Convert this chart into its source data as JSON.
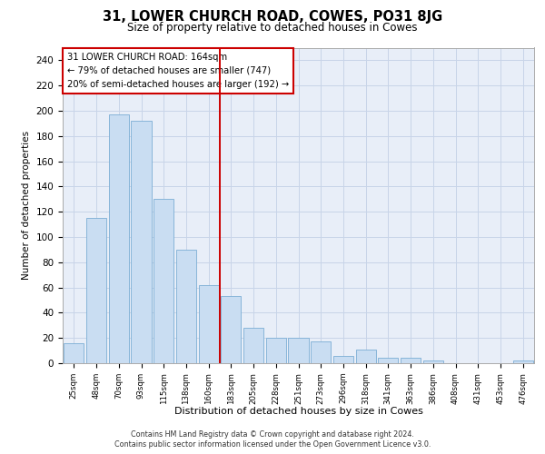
{
  "title": "31, LOWER CHURCH ROAD, COWES, PO31 8JG",
  "subtitle": "Size of property relative to detached houses in Cowes",
  "xlabel": "Distribution of detached houses by size in Cowes",
  "ylabel": "Number of detached properties",
  "categories": [
    "25sqm",
    "48sqm",
    "70sqm",
    "93sqm",
    "115sqm",
    "138sqm",
    "160sqm",
    "183sqm",
    "205sqm",
    "228sqm",
    "251sqm",
    "273sqm",
    "296sqm",
    "318sqm",
    "341sqm",
    "363sqm",
    "386sqm",
    "408sqm",
    "431sqm",
    "453sqm",
    "476sqm"
  ],
  "values": [
    16,
    115,
    197,
    192,
    130,
    90,
    62,
    53,
    28,
    20,
    20,
    17,
    6,
    11,
    4,
    4,
    2,
    0,
    0,
    0,
    2
  ],
  "bar_color": "#c9ddf2",
  "bar_edge_color": "#7badd4",
  "grid_color": "#c8d4e8",
  "background_color": "#e8eef8",
  "annotation_text": "31 LOWER CHURCH ROAD: 164sqm\n← 79% of detached houses are smaller (747)\n20% of semi-detached houses are larger (192) →",
  "vline_x_index": 6.5,
  "ylim": [
    0,
    250
  ],
  "yticks": [
    0,
    20,
    40,
    60,
    80,
    100,
    120,
    140,
    160,
    180,
    200,
    220,
    240
  ],
  "footer_line1": "Contains HM Land Registry data © Crown copyright and database right 2024.",
  "footer_line2": "Contains public sector information licensed under the Open Government Licence v3.0."
}
